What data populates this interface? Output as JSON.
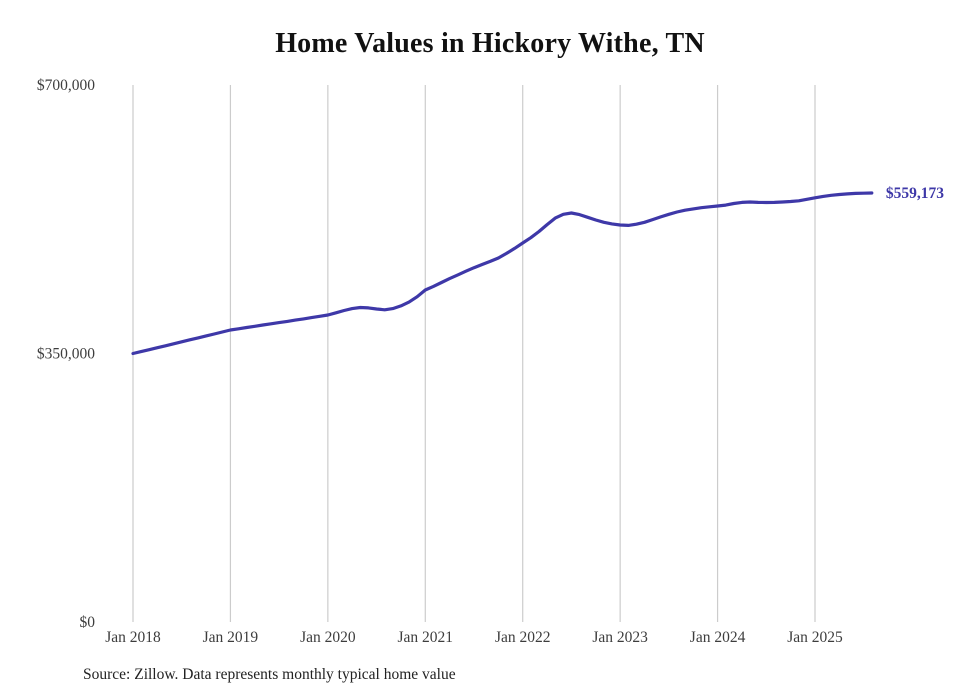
{
  "source_text": "Source: Zillow. Data represents monthly typical home value",
  "chart_data": {
    "type": "line",
    "title": "Home Values in Hickory Withe, TN",
    "xlabel": "",
    "ylabel": "",
    "ylim": [
      0,
      700000
    ],
    "y_ticks": [
      0,
      350000,
      700000
    ],
    "y_tick_labels": [
      "$0",
      "$350,000",
      "$700,000"
    ],
    "x_tick_labels": [
      "Jan 2018",
      "Jan 2019",
      "Jan 2020",
      "Jan 2021",
      "Jan 2022",
      "Jan 2023",
      "Jan 2024",
      "Jan 2025"
    ],
    "grid": "vertical-yearly-only",
    "legend": "none",
    "line_color": "#3e38a8",
    "gridline_color": "#cccccc",
    "tick_label_color": "#3d3d3d",
    "end_label": "$559,173",
    "end_value": 559173,
    "series": [
      {
        "name": "Monthly typical home value",
        "months": [
          "2018-01",
          "2018-02",
          "2018-03",
          "2018-04",
          "2018-05",
          "2018-06",
          "2018-07",
          "2018-08",
          "2018-09",
          "2018-10",
          "2018-11",
          "2018-12",
          "2019-01",
          "2019-02",
          "2019-03",
          "2019-04",
          "2019-05",
          "2019-06",
          "2019-07",
          "2019-08",
          "2019-09",
          "2019-10",
          "2019-11",
          "2019-12",
          "2020-01",
          "2020-02",
          "2020-03",
          "2020-04",
          "2020-05",
          "2020-06",
          "2020-07",
          "2020-08",
          "2020-09",
          "2020-10",
          "2020-11",
          "2020-12",
          "2021-01",
          "2021-02",
          "2021-03",
          "2021-04",
          "2021-05",
          "2021-06",
          "2021-07",
          "2021-08",
          "2021-09",
          "2021-10",
          "2021-11",
          "2021-12",
          "2022-01",
          "2022-02",
          "2022-03",
          "2022-04",
          "2022-05",
          "2022-06",
          "2022-07",
          "2022-08",
          "2022-09",
          "2022-10",
          "2022-11",
          "2022-12",
          "2023-01",
          "2023-02",
          "2023-03",
          "2023-04",
          "2023-05",
          "2023-06",
          "2023-07",
          "2023-08",
          "2023-09",
          "2023-10",
          "2023-11",
          "2023-12",
          "2024-01",
          "2024-02",
          "2024-03",
          "2024-04",
          "2024-05",
          "2024-06",
          "2024-07",
          "2024-08",
          "2024-09",
          "2024-10",
          "2024-11",
          "2024-12",
          "2025-01",
          "2025-02",
          "2025-03",
          "2025-04",
          "2025-05",
          "2025-06",
          "2025-07",
          "2025-08"
        ],
        "values": [
          350000,
          352500,
          355000,
          357600,
          360100,
          362700,
          365200,
          367800,
          370300,
          372900,
          375400,
          378000,
          380600,
          382200,
          383900,
          385500,
          387100,
          388700,
          390300,
          391900,
          393500,
          395100,
          396800,
          398500,
          400200,
          403000,
          406000,
          408500,
          410000,
          409500,
          408000,
          407000,
          408500,
          412000,
          417000,
          424000,
          432800,
          437500,
          442500,
          447600,
          452500,
          457300,
          461800,
          466000,
          470000,
          474500,
          480500,
          487000,
          494000,
          501000,
          509000,
          518000,
          526500,
          531500,
          533100,
          531000,
          527500,
          524000,
          521000,
          518900,
          517500,
          517000,
          518500,
          521000,
          524500,
          528000,
          531500,
          534500,
          536800,
          538500,
          540000,
          541200,
          542300,
          543500,
          545500,
          547000,
          547500,
          547000,
          546800,
          547000,
          547500,
          548200,
          549000,
          551000,
          553000,
          554800,
          556200,
          557300,
          558100,
          558700,
          559000,
          559173
        ]
      }
    ]
  }
}
